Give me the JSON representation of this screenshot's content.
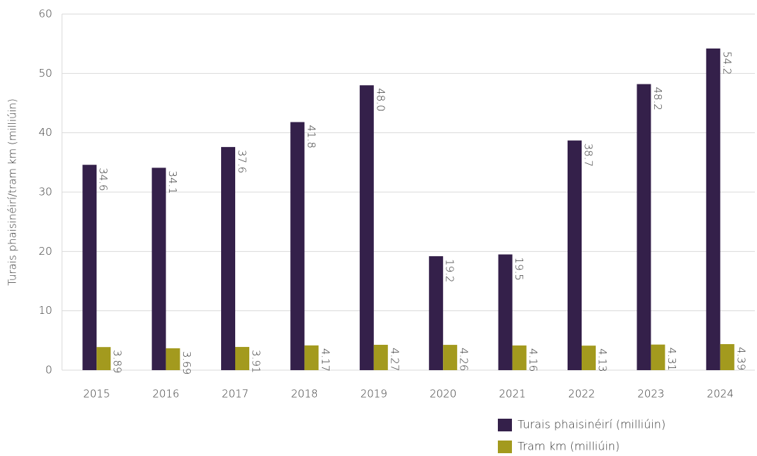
{
  "chart_data": {
    "type": "bar",
    "y_label": "Turais phaisinéirí/tram km (milliúin)",
    "categories": [
      "2015",
      "2016",
      "2017",
      "2018",
      "2019",
      "2020",
      "2021",
      "2022",
      "2023",
      "2024"
    ],
    "series": [
      {
        "name": "Turais phaisinéirí (milliúin)",
        "color": "#34204a",
        "values": [
          34.6,
          34.1,
          37.6,
          41.8,
          48.0,
          19.2,
          19.5,
          38.7,
          48.2,
          54.2
        ],
        "value_labels": [
          "34.6",
          "34.1",
          "37.6",
          "41.8",
          "48.0",
          "19.2",
          "19.5",
          "38.7",
          "48.2",
          "54.2"
        ]
      },
      {
        "name": "Tram km (milliúin)",
        "color": "#a39a1e",
        "values": [
          3.89,
          3.69,
          3.91,
          4.17,
          4.27,
          4.26,
          4.16,
          4.13,
          4.31,
          4.39
        ]
      }
    ],
    "ylim": [
      0,
      60
    ],
    "yticks": [
      0,
      10,
      20,
      30,
      40,
      50,
      60
    ],
    "grid": true,
    "legend": "bottom"
  }
}
